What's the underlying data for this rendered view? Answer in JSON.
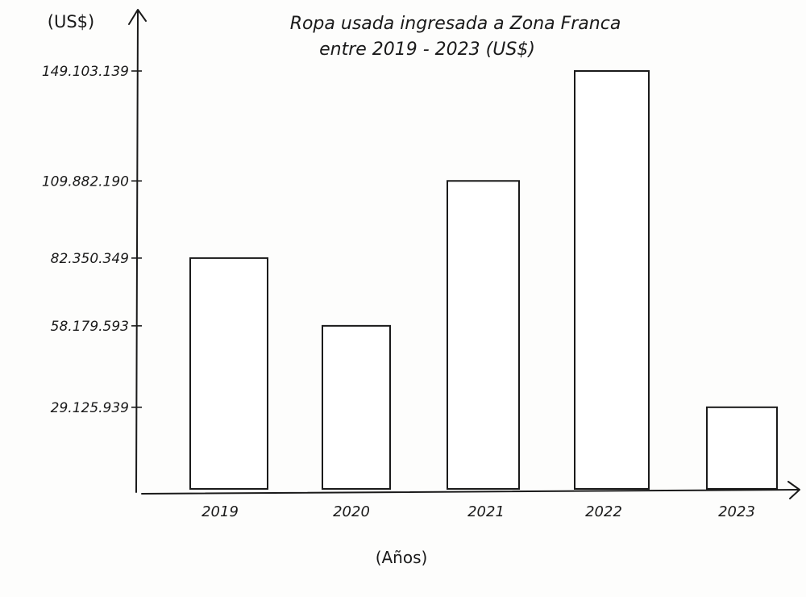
{
  "chart_data": {
    "type": "bar",
    "title": "Ropa usada ingresada a Zona Franca",
    "subtitle": "entre 2019 - 2023 (US$)",
    "ylabel": "(US$)",
    "xlabel": "(Años)",
    "categories": [
      "2019",
      "2020",
      "2021",
      "2022",
      "2023"
    ],
    "values": [
      82350349,
      58179593,
      109882190,
      149103139,
      29125939
    ],
    "value_labels": [
      "82.350.349",
      "58.179.593",
      "109.882.190",
      "149.103.139",
      "29.125.939"
    ],
    "ylim": [
      0,
      149103139
    ],
    "grid": false,
    "legend": "none"
  }
}
